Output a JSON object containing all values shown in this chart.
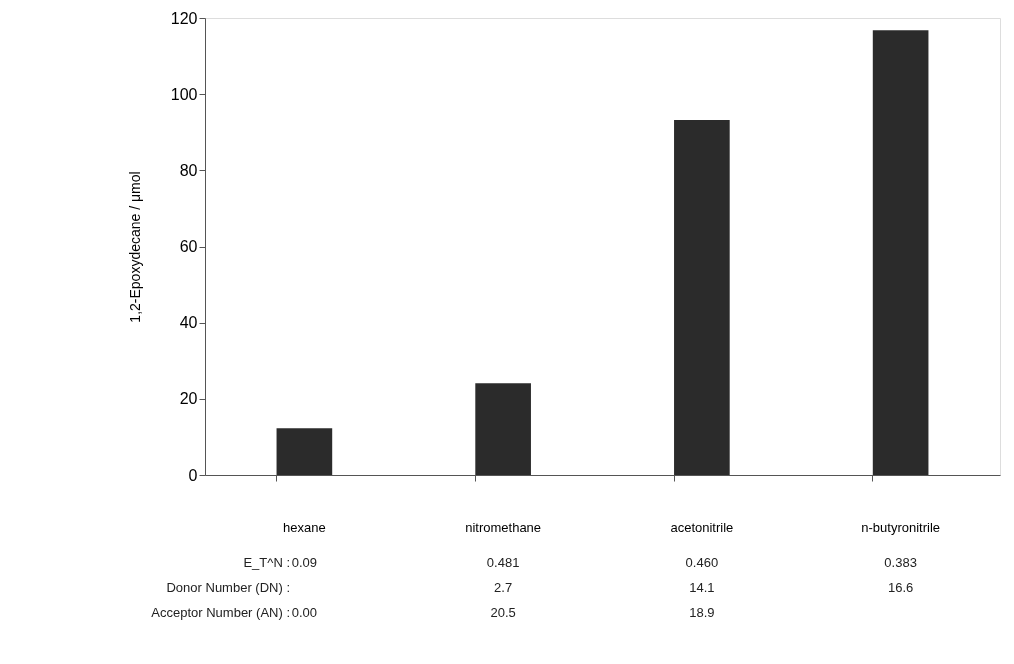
{
  "chart_data": {
    "type": "bar",
    "ylabel": "1,2-Epoxydecane / μmol",
    "categories": [
      "hexane",
      "nitromethane",
      "acetonitrile",
      "n-butyronitrile"
    ],
    "values": [
      12.3,
      24.1,
      93.2,
      116.8
    ],
    "color": "#2b2b2b",
    "ylim": [
      0,
      120
    ],
    "yticks": [
      0,
      20,
      40,
      60,
      80,
      100,
      120
    ],
    "grid": false,
    "annotations": [
      "E_T^N :",
      "0.09",
      "0.481",
      "0.460",
      "0.383",
      "Donor Number (DN) :",
      "2.7",
      "14.1",
      "16.6",
      "Acceptor Number (AN) :",
      "0.00",
      "20.5",
      "18.9"
    ]
  }
}
